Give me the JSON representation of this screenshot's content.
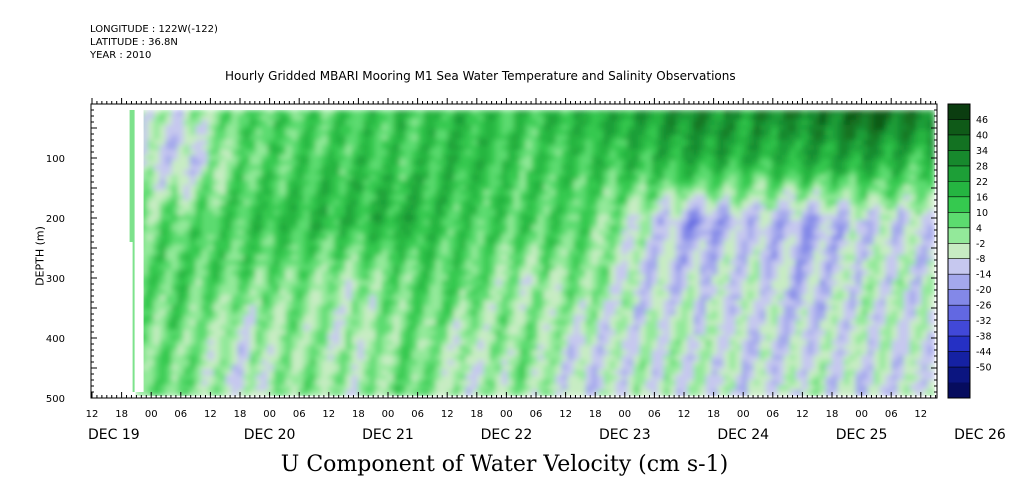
{
  "header": {
    "longitude": "LONGITUDE : 122W(-122)",
    "latitude": "LATITUDE : 36.8N",
    "year": "YEAR : 2010"
  },
  "chart_data": {
    "type": "heatmap",
    "title": "Hourly Gridded MBARI Mooring M1 Sea Water Temperature and Salinity Observations",
    "xlabel": "U Component of Water Velocity (cm s-1)",
    "ylabel": "DEPTH (m)",
    "x_hour_ticks": [
      "12",
      "18",
      "00",
      "06",
      "12",
      "18",
      "00",
      "06",
      "12",
      "18",
      "00",
      "06",
      "12",
      "18",
      "00",
      "06",
      "12",
      "18",
      "00",
      "06",
      "12",
      "18",
      "00",
      "06",
      "12",
      "18",
      "00",
      "06",
      "12"
    ],
    "x_day_labels": [
      "DEC 19",
      "DEC 20",
      "DEC 21",
      "DEC 22",
      "DEC 23",
      "DEC 24",
      "DEC 25",
      "DEC 26"
    ],
    "y_ticks": [
      100,
      200,
      300,
      400,
      500
    ],
    "y_range": [
      10,
      500
    ],
    "data_depth_range": [
      20,
      490
    ],
    "colorbar_levels": [
      46,
      40,
      34,
      28,
      22,
      16,
      10,
      4,
      -2,
      -8,
      -14,
      -20,
      -26,
      -32,
      -38,
      -44,
      -50
    ],
    "colorbar_colors": [
      "#0b3d10",
      "#0f5a18",
      "#137222",
      "#17892d",
      "#1d9f37",
      "#25b541",
      "#35c94f",
      "#5cdb6f",
      "#93e99a",
      "#c7ecc3",
      "#c6c8ef",
      "#a4a8ec",
      "#8388e8",
      "#6268e2",
      "#4148d8",
      "#2530c4",
      "#1521a3",
      "#0b1580",
      "#060c5e"
    ],
    "approx_values": {
      "times": [
        "DEC 19 18",
        "DEC 20 00",
        "DEC 20 12",
        "DEC 21 00",
        "DEC 21 12",
        "DEC 22 00",
        "DEC 22 12",
        "DEC 23 00",
        "DEC 23 12",
        "DEC 24 00",
        "DEC 24 12",
        "DEC 25 00",
        "DEC 25 12",
        "DEC 26 00",
        "DEC 26 12"
      ],
      "depths": [
        20,
        100,
        200,
        300,
        400,
        490
      ],
      "u": [
        [
          2,
          -6,
          10,
          8,
          12,
          14,
          16,
          14,
          18,
          22,
          30,
          28,
          32,
          40,
          34
        ],
        [
          -4,
          -14,
          6,
          10,
          14,
          12,
          18,
          10,
          14,
          16,
          22,
          18,
          20,
          24,
          14
        ],
        [
          4,
          8,
          12,
          16,
          18,
          20,
          10,
          12,
          8,
          -4,
          -20,
          -12,
          -16,
          -10,
          -8
        ],
        [
          8,
          10,
          6,
          4,
          -2,
          8,
          10,
          -4,
          6,
          -8,
          -10,
          -6,
          -14,
          -4,
          -6
        ],
        [
          2,
          6,
          -6,
          2,
          -4,
          6,
          -4,
          4,
          -8,
          -6,
          -4,
          -10,
          -8,
          -6,
          -8
        ],
        [
          4,
          6,
          -8,
          4,
          -2,
          8,
          -6,
          2,
          -10,
          -4,
          -6,
          -8,
          -4,
          -10,
          -6
        ]
      ]
    }
  }
}
